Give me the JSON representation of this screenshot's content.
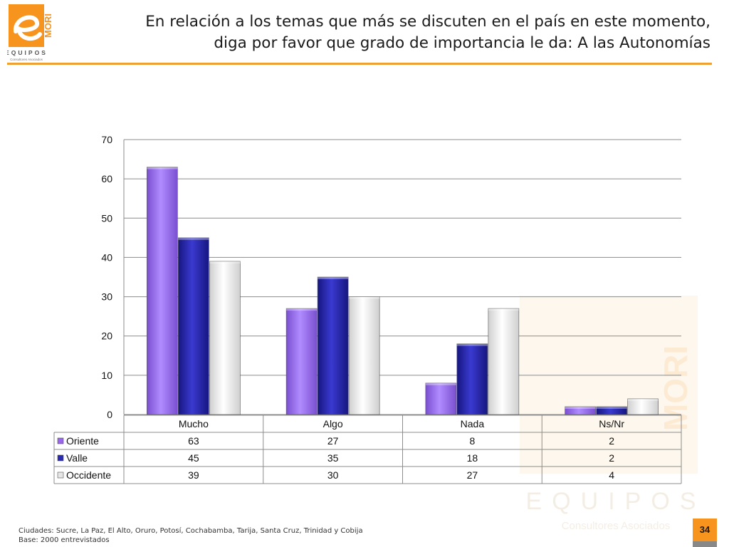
{
  "header": {
    "title_lines": [
      "En relación a los temas que más se discuten en el país en este momento,",
      "diga por favor que grado de importancia le da: A las Autonomías"
    ],
    "logo_text": "MORI",
    "logo_brand": "EQUIPOS",
    "logo_tagline": "Consultores Asociados"
  },
  "colors": {
    "accent": "#f7941d",
    "rule": "#f0a030"
  },
  "chart_data": {
    "type": "bar",
    "categories": [
      "Mucho",
      "Algo",
      "Nada",
      "Ns/Nr"
    ],
    "series": [
      {
        "name": "Oriente",
        "values": [
          63,
          27,
          8,
          2
        ],
        "table_values": [
          "63",
          "27",
          "8",
          "2"
        ],
        "color": "#9966ee"
      },
      {
        "name": "Valle",
        "values": [
          45,
          35,
          18,
          2
        ],
        "table_values": [
          "45",
          "35",
          "18",
          "2"
        ],
        "color": "#2a2ab0"
      },
      {
        "name": "Occidente",
        "values": [
          39,
          30,
          27,
          4
        ],
        "table_values": [
          "39",
          "30",
          "27",
          "4"
        ],
        "color": "#f0f0f0"
      }
    ],
    "ylim": [
      0,
      70
    ],
    "yticks": [
      "0",
      "10",
      "20",
      "30",
      "40",
      "50",
      "60",
      "70"
    ],
    "grid": true,
    "legend": "data-table"
  },
  "footer": {
    "cities": "Ciudades: Sucre, La Paz, El Alto, Oruro, Potosí, Cochabamba, Tarija, Santa Cruz, Trinidad y Cobija",
    "base": "Base: 2000 entrevistados",
    "page_number": "34"
  }
}
